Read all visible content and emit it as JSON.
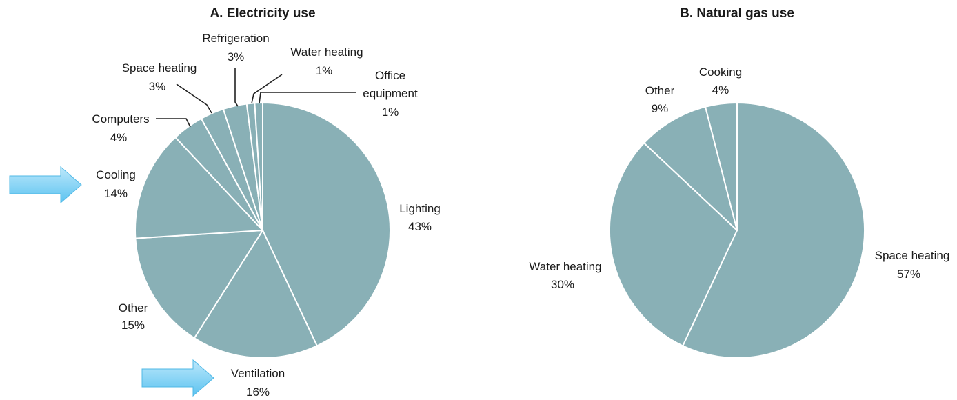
{
  "colors": {
    "slice_fill": "#89b0b6",
    "slice_stroke": "#ffffff",
    "leader_line": "#222222",
    "arrow_fill": "#5cc3f0",
    "arrow_fill_light": "#bde8fb"
  },
  "chart_data": [
    {
      "type": "pie",
      "title": "A. Electricity use",
      "unit": "%",
      "slices": [
        {
          "label": "Lighting",
          "value": 43,
          "value_label": "43%"
        },
        {
          "label": "Ventilation",
          "value": 16,
          "value_label": "16%",
          "highlighted": true
        },
        {
          "label": "Other",
          "value": 15,
          "value_label": "15%"
        },
        {
          "label": "Cooling",
          "value": 14,
          "value_label": "14%",
          "highlighted": true
        },
        {
          "label": "Computers",
          "value": 4,
          "value_label": "4%"
        },
        {
          "label": "Space heating",
          "value": 3,
          "value_label": "3%"
        },
        {
          "label": "Refrigeration",
          "value": 3,
          "value_label": "3%"
        },
        {
          "label": "Water heating",
          "value": 1,
          "value_label": "1%"
        },
        {
          "label": "Office equipment",
          "value": 1,
          "value_label": "1%"
        }
      ]
    },
    {
      "type": "pie",
      "title": "B. Natural gas use",
      "unit": "%",
      "slices": [
        {
          "label": "Space heating",
          "value": 57,
          "value_label": "57%"
        },
        {
          "label": "Water heating",
          "value": 30,
          "value_label": "30%"
        },
        {
          "label": "Other",
          "value": 9,
          "value_label": "9%"
        },
        {
          "label": "Cooking",
          "value": 4,
          "value_label": "4%"
        }
      ]
    }
  ]
}
